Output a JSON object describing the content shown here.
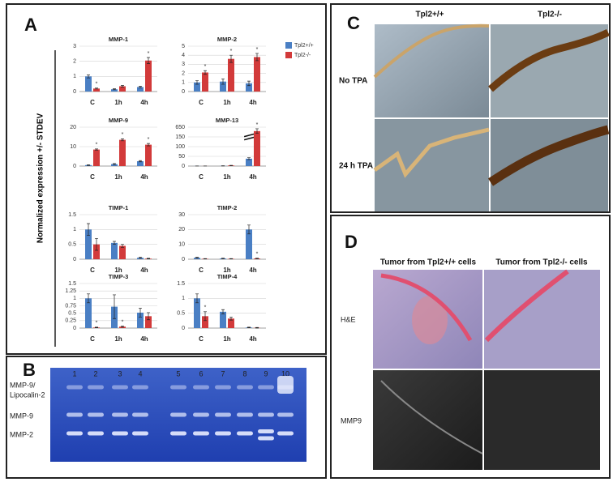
{
  "panel_a": {
    "label": "A",
    "y_axis_label": "Normalized expression +/- STDEV",
    "legend": [
      {
        "name": "Tpl2+/+",
        "color": "#4a7fc4"
      },
      {
        "name": "Tpl2-/-",
        "color": "#d23a3a"
      }
    ]
  },
  "chart_data": [
    {
      "type": "bar",
      "title": "MMP-1",
      "categories": [
        "C",
        "1h",
        "4h"
      ],
      "ylim": [
        0,
        3
      ],
      "yticks": [
        0,
        1,
        2,
        3
      ],
      "grid": true,
      "series": [
        {
          "values": [
            1.0,
            0.15,
            0.3
          ],
          "errors": [
            0.1,
            0.03,
            0.05
          ]
        },
        {
          "values": [
            0.2,
            0.35,
            2.05
          ],
          "errors": [
            0.03,
            0.05,
            0.2
          ],
          "markers": [
            "*",
            null,
            "*"
          ]
        }
      ]
    },
    {
      "type": "bar",
      "title": "MMP-2",
      "categories": [
        "C",
        "1h",
        "4h"
      ],
      "ylim": [
        0,
        5
      ],
      "yticks": [
        0,
        1,
        2,
        3,
        4,
        5
      ],
      "grid": true,
      "series": [
        {
          "values": [
            1.0,
            1.1,
            0.9
          ],
          "errors": [
            0.2,
            0.3,
            0.25
          ]
        },
        {
          "values": [
            2.1,
            3.6,
            3.8
          ],
          "errors": [
            0.2,
            0.4,
            0.4
          ],
          "markers": [
            "*",
            "*",
            "*"
          ]
        }
      ]
    },
    {
      "type": "bar",
      "title": "MMP-9",
      "categories": [
        "C",
        "1h",
        "4h"
      ],
      "ylim": [
        0,
        20
      ],
      "yticks": [
        0,
        10,
        20
      ],
      "grid": true,
      "series": [
        {
          "values": [
            0.5,
            1.0,
            2.5
          ],
          "errors": [
            0.2,
            0.3,
            0.3
          ]
        },
        {
          "values": [
            8.5,
            13.5,
            11.0
          ],
          "errors": [
            0.3,
            0.5,
            0.6
          ],
          "markers": [
            "*",
            "*",
            "*"
          ]
        }
      ]
    },
    {
      "type": "bar",
      "title": "MMP-13",
      "categories": [
        "C",
        "1h",
        "4h"
      ],
      "ylim": [
        0,
        650
      ],
      "yticks": [
        0,
        50,
        100,
        150,
        650
      ],
      "axis_break": [
        160,
        640
      ],
      "grid": true,
      "series": [
        {
          "values": [
            0.5,
            1.0,
            38
          ],
          "errors": [
            0.2,
            0.5,
            5
          ]
        },
        {
          "values": [
            0.3,
            3,
            645
          ],
          "errors": [
            0.1,
            1,
            3
          ],
          "markers": [
            null,
            null,
            "*"
          ]
        }
      ]
    },
    {
      "type": "bar",
      "title": "TIMP-1",
      "categories": [
        "C",
        "1h",
        "4h"
      ],
      "ylim": [
        0,
        1.5
      ],
      "yticks": [
        0,
        0.5,
        1,
        1.5
      ],
      "grid": true,
      "series": [
        {
          "values": [
            1.0,
            0.55,
            0.05
          ],
          "errors": [
            0.2,
            0.05,
            0.02
          ]
        },
        {
          "values": [
            0.5,
            0.45,
            0.02
          ],
          "errors": [
            0.2,
            0.05,
            0.01
          ]
        }
      ]
    },
    {
      "type": "bar",
      "title": "TIMP-2",
      "categories": [
        "C",
        "1h",
        "4h"
      ],
      "ylim": [
        0,
        30
      ],
      "yticks": [
        0,
        10,
        20,
        30
      ],
      "grid": true,
      "series": [
        {
          "values": [
            1.0,
            0.5,
            20
          ],
          "errors": [
            0.3,
            0.2,
            3
          ]
        },
        {
          "values": [
            0.3,
            0.3,
            0.5
          ],
          "errors": [
            0.1,
            0.1,
            0.2
          ],
          "markers": [
            null,
            null,
            "*"
          ]
        }
      ]
    },
    {
      "type": "bar",
      "title": "TIMP-3",
      "categories": [
        "C",
        "1h",
        "4h"
      ],
      "ylim": [
        0,
        1.5
      ],
      "yticks": [
        0,
        0.25,
        0.5,
        0.75,
        1,
        1.25,
        1.5
      ],
      "grid": true,
      "series": [
        {
          "values": [
            1.0,
            0.72,
            0.52
          ],
          "errors": [
            0.15,
            0.4,
            0.15
          ]
        },
        {
          "values": [
            0.02,
            0.05,
            0.4
          ],
          "errors": [
            0.01,
            0.02,
            0.12
          ],
          "markers": [
            "*",
            "*",
            null
          ]
        }
      ]
    },
    {
      "type": "bar",
      "title": "TIMP-4",
      "categories": [
        "C",
        "1h",
        "4h"
      ],
      "ylim": [
        0,
        1.5
      ],
      "yticks": [
        0,
        0.5,
        1,
        1.5
      ],
      "grid": true,
      "series": [
        {
          "values": [
            1.0,
            0.55,
            0.02
          ],
          "errors": [
            0.15,
            0.07,
            0.01
          ]
        },
        {
          "values": [
            0.4,
            0.32,
            0.01
          ],
          "errors": [
            0.15,
            0.05,
            0.01
          ],
          "markers": [
            "*",
            null,
            null
          ]
        }
      ]
    }
  ],
  "panel_b": {
    "label": "B",
    "lanes": [
      1,
      2,
      3,
      4,
      5,
      6,
      7,
      8,
      9,
      10
    ],
    "bands": [
      "MMP-9/",
      "Lipocalin-2",
      "MMP-9",
      "MMP-2"
    ]
  },
  "panel_c": {
    "label": "C",
    "columns": [
      "Tpl2+/+",
      "Tpl2-/-"
    ],
    "rows": [
      "No TPA",
      "24 h TPA"
    ]
  },
  "panel_d": {
    "label": "D",
    "columns": [
      "Tumor from Tpl2+/+ cells",
      "Tumor from Tpl2-/- cells"
    ],
    "rows": [
      "H&E",
      "MMP9"
    ]
  }
}
